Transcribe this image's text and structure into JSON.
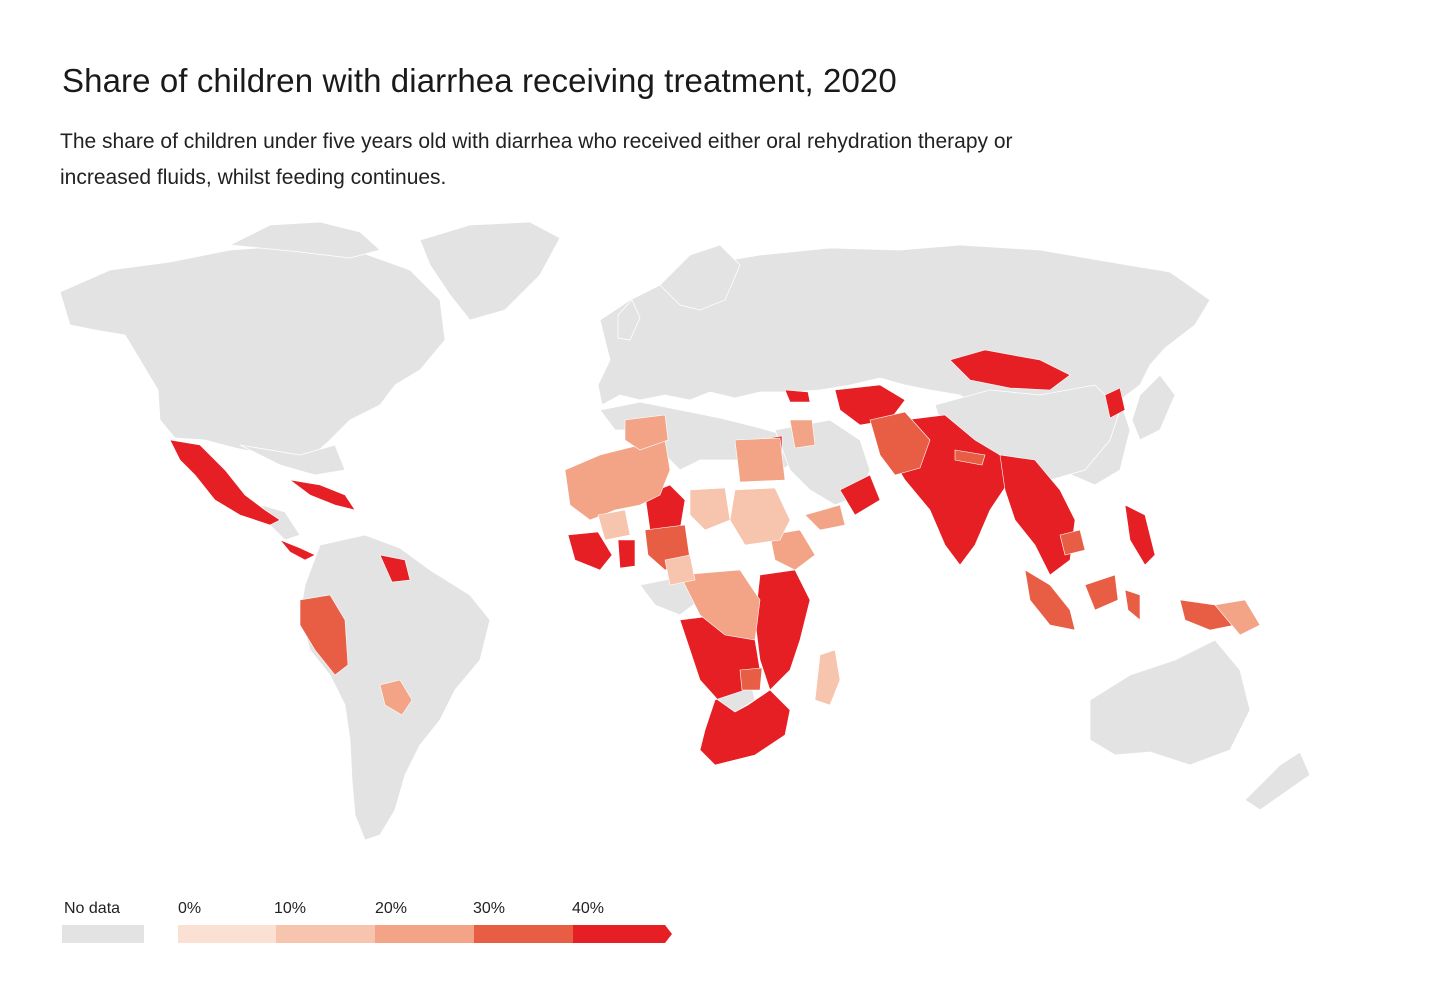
{
  "title": "Share of children with diarrhea receiving treatment, 2020",
  "subtitle": "The share of children under five years old with diarrhea who received either oral rehydration therapy or increased fluids, whilst feeding continues.",
  "legend": {
    "no_data_label": "No data",
    "no_data_color": "#e3e3e3",
    "bins": [
      {
        "label": "0%",
        "color": "#fbe0d4"
      },
      {
        "label": "10%",
        "color": "#f7c4ad"
      },
      {
        "label": "20%",
        "color": "#f3a386"
      },
      {
        "label": "30%",
        "color": "#e85e45"
      },
      {
        "label": "40%",
        "color": "#e51f24"
      }
    ]
  },
  "colors": {
    "no_data": "#e3e3e3",
    "c1": "#fbe0d4",
    "c2": "#f7c4ad",
    "c3": "#f3a386",
    "c4": "#e85e45",
    "c5": "#e51f24",
    "background": "#ffffff"
  }
}
